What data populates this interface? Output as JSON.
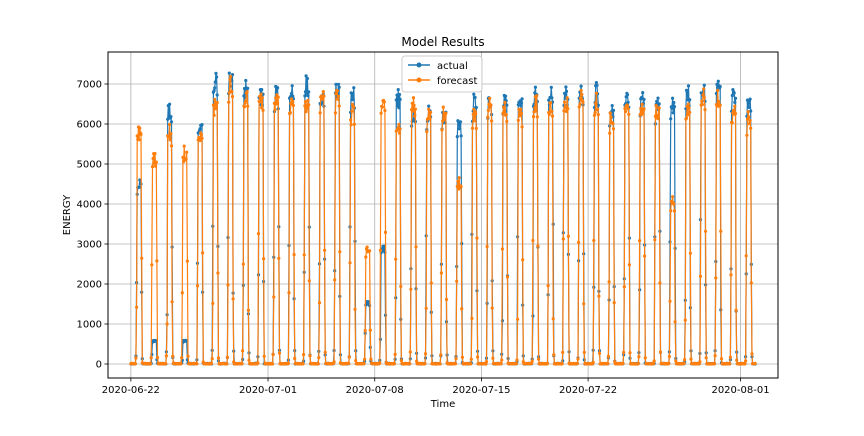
{
  "chart_data": {
    "type": "line",
    "title": "Model Results",
    "xlabel": "Time",
    "ylabel": "ENERGY",
    "xlim": [
      "2020-06-20T12:00",
      "2020-08-03T11:00"
    ],
    "ylim": [
      -350,
      7800
    ],
    "xticks": [
      "2020-06-22",
      "2020-07-01",
      "2020-07-08",
      "2020-07-15",
      "2020-07-22",
      "2020-08-01"
    ],
    "yticks": [
      0,
      1000,
      2000,
      3000,
      4000,
      5000,
      6000,
      7000
    ],
    "grid": true,
    "legend_position": "upper center",
    "series_peaks_note": "daily daylight peaks, one per day from 2020-06-22 to 2020-08-01",
    "series": [
      {
        "name": "actual",
        "color": "#1f77b4",
        "start": "2020-06-22",
        "daily_peaks": [
          4700,
          600,
          6600,
          600,
          6250,
          7400,
          7450,
          7150,
          6950,
          7000,
          7050,
          7250,
          7000,
          7150,
          7000,
          1600,
          3000,
          6900,
          6500,
          6500,
          6500,
          6300,
          6800,
          6800,
          6800,
          6900,
          7000,
          7000,
          7000,
          6950,
          7050,
          6600,
          6900,
          6900,
          6700,
          6650,
          7000,
          7250,
          7150,
          7050,
          6800
        ]
      },
      {
        "name": "forecast",
        "color": "#ff7f0e",
        "start": "2020-06-22",
        "daily_peaks": [
          6000,
          5300,
          6000,
          5500,
          6000,
          6800,
          7300,
          7000,
          6900,
          6900,
          6800,
          6800,
          6900,
          6900,
          6500,
          3000,
          6700,
          6200,
          6700,
          6500,
          6500,
          4700,
          6500,
          6700,
          6700,
          6500,
          6800,
          6700,
          6800,
          6900,
          6850,
          6400,
          6700,
          6700,
          6600,
          4200,
          6600,
          6900,
          6900,
          6600,
          6400
        ]
      }
    ]
  }
}
